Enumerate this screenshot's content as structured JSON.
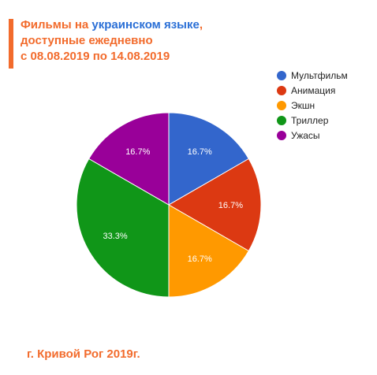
{
  "header": {
    "title_part1": "Фильмы на ",
    "title_part2": "украинском языке",
    "title_part3": ",",
    "title_line2": "доступные ежедневно",
    "title_line3": "с 08.08.2019 по 14.08.2019"
  },
  "footer": {
    "text": "г. Кривой Рог 2019г."
  },
  "chart_data": {
    "type": "pie",
    "legend_position": "top-right",
    "slices": [
      {
        "label": "Мультфильм",
        "value": 1,
        "percent_label": "16.7%",
        "color": "#3366cc"
      },
      {
        "label": "Анимация",
        "value": 1,
        "percent_label": "16.7%",
        "color": "#dc3912"
      },
      {
        "label": "Экшн",
        "value": 1,
        "percent_label": "16.7%",
        "color": "#ff9900"
      },
      {
        "label": "Триллер",
        "value": 2,
        "percent_label": "33.3%",
        "color": "#109618"
      },
      {
        "label": "Ужасы",
        "value": 1,
        "percent_label": "16.7%",
        "color": "#990099"
      }
    ]
  }
}
